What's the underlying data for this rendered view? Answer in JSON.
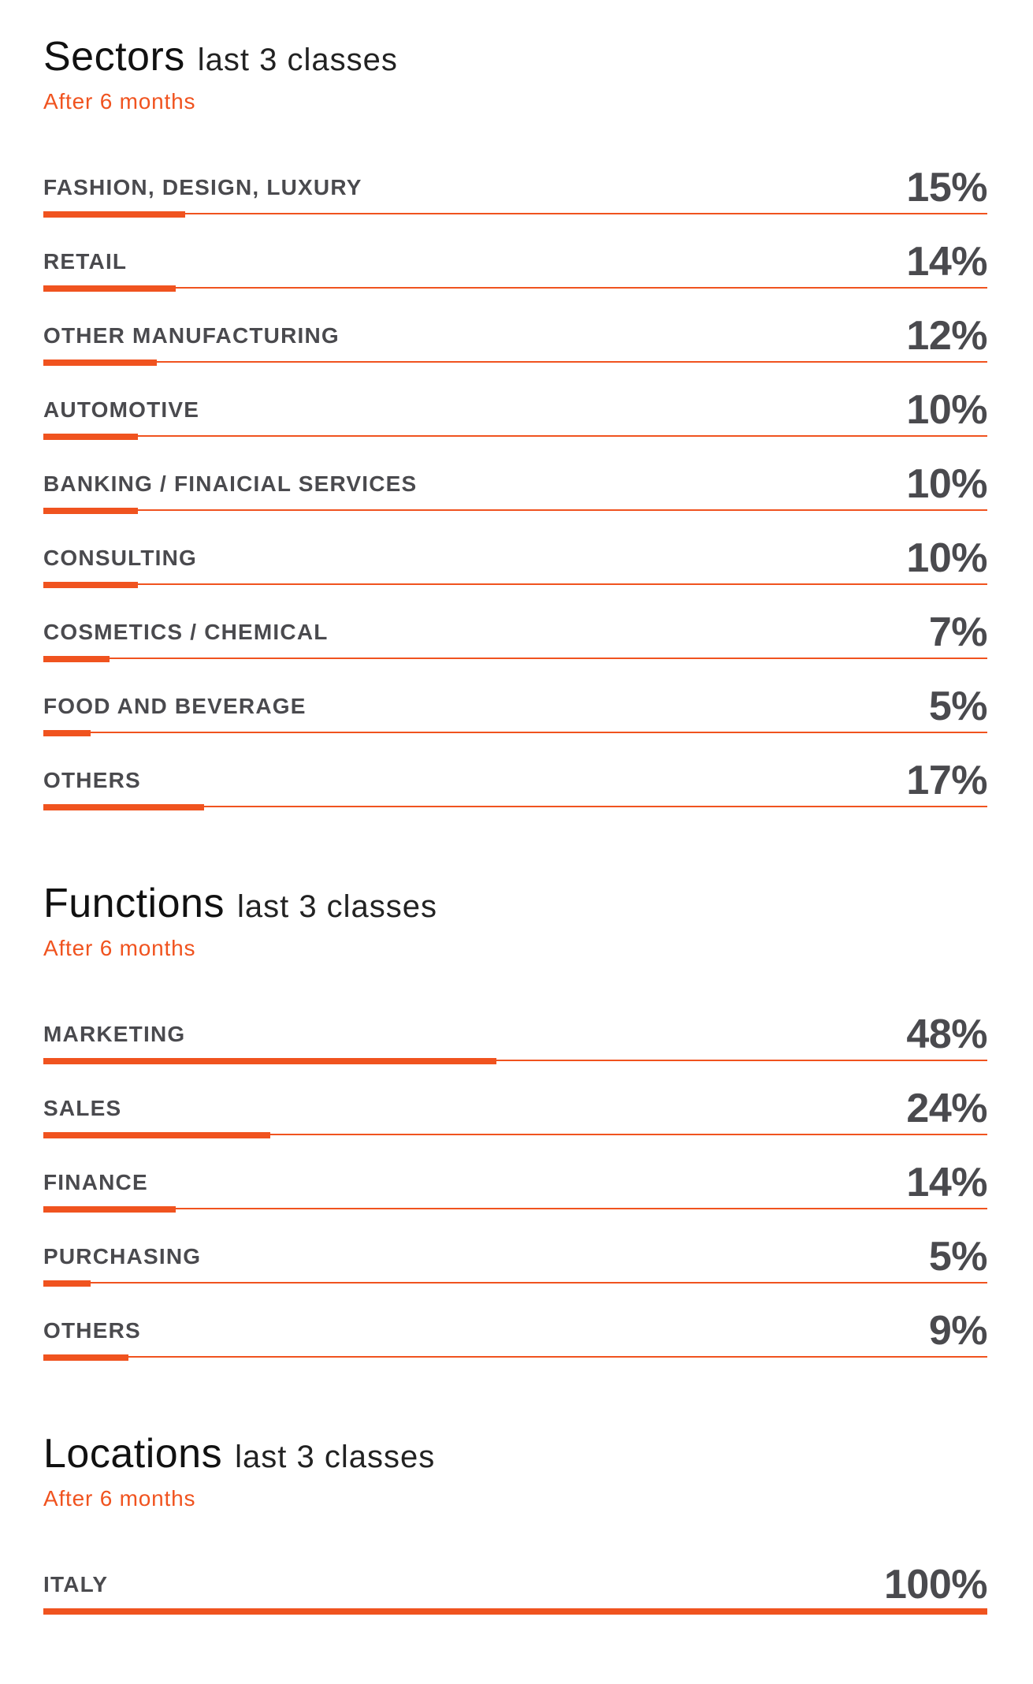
{
  "colors": {
    "accent": "#f0531f",
    "text": "#4a4a4e",
    "title": "#111111"
  },
  "chart_data": [
    {
      "type": "bar",
      "title": "Sectors",
      "subtitle": "last 3 classes",
      "period": "After 6 months",
      "categories": [
        "FASHION, DESIGN, LUXURY",
        "RETAIL",
        "OTHER MANUFACTURING",
        "AUTOMOTIVE",
        "BANKING / FINAICIAL SERVICES",
        "CONSULTING",
        "COSMETICS / CHEMICAL",
        "FOOD AND BEVERAGE",
        "OTHERS"
      ],
      "values": [
        15,
        14,
        12,
        10,
        10,
        10,
        7,
        5,
        17
      ],
      "value_labels": [
        "15%",
        "14%",
        "12%",
        "10%",
        "10%",
        "10%",
        "7%",
        "5%",
        "17%"
      ],
      "ylim": [
        0,
        100
      ]
    },
    {
      "type": "bar",
      "title": "Functions",
      "subtitle": "last 3 classes",
      "period": "After 6 months",
      "categories": [
        "MARKETING",
        "SALES",
        "FINANCE",
        "PURCHASING",
        "OTHERS"
      ],
      "values": [
        48,
        24,
        14,
        5,
        9
      ],
      "value_labels": [
        "48%",
        "24%",
        "14%",
        "5%",
        "9%"
      ],
      "ylim": [
        0,
        100
      ]
    },
    {
      "type": "bar",
      "title": "Locations",
      "subtitle": "last 3 classes",
      "period": "After 6 months",
      "categories": [
        "ITALY"
      ],
      "values": [
        100
      ],
      "value_labels": [
        "100%"
      ],
      "ylim": [
        0,
        100
      ]
    }
  ]
}
